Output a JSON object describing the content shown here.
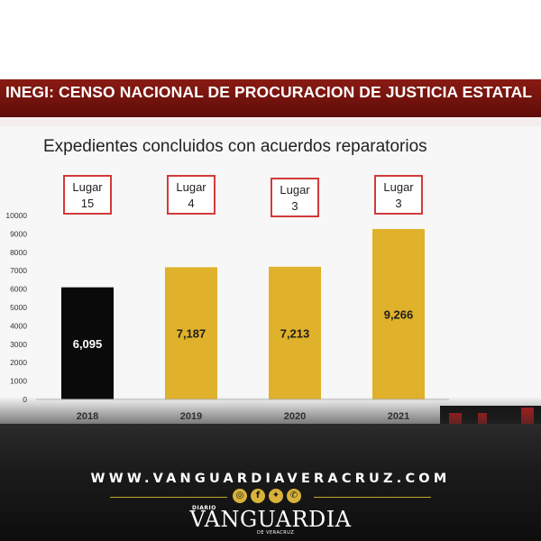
{
  "banner": {
    "title": "INEGI: CENSO NACIONAL DE PROCURACION DE JUSTICIA ESTATAL"
  },
  "chart_data": {
    "type": "bar",
    "title": "Expedientes concluidos con acuerdos reparatorios",
    "xlabel": "",
    "ylabel": "",
    "categories": [
      "2018",
      "2019",
      "2020",
      "2021"
    ],
    "values": [
      6095,
      7187,
      7213,
      9266
    ],
    "value_labels": [
      "6,095",
      "7,187",
      "7,213",
      "9,266"
    ],
    "ranking": [
      {
        "label": "Lugar",
        "value": "15"
      },
      {
        "label": "Lugar",
        "value": "4"
      },
      {
        "label": "Lugar",
        "value": "3"
      },
      {
        "label": "Lugar",
        "value": "3"
      }
    ],
    "bar_colors": [
      "#0a0a0a",
      "#e0b12b",
      "#e0b12b",
      "#e0b12b"
    ],
    "ylim": [
      0,
      10000
    ],
    "yticks": [
      0,
      1000,
      2000,
      3000,
      4000,
      5000,
      6000,
      7000,
      8000,
      9000,
      10000
    ],
    "grid": false,
    "legend": "none"
  },
  "footer": {
    "site_url": "WWW.VANGUARDIAVERACRUZ.COM",
    "logo_prefix": "DIARIO",
    "logo_name": "VANGUARDIA",
    "logo_suffix": "DE VERACRUZ",
    "social_icons": [
      {
        "name": "instagram-icon",
        "glyph": "◎"
      },
      {
        "name": "facebook-icon",
        "glyph": "f"
      },
      {
        "name": "twitter-icon",
        "glyph": "✦"
      },
      {
        "name": "whatsapp-icon",
        "glyph": "✆"
      }
    ],
    "accent_color": "#c9a332"
  }
}
